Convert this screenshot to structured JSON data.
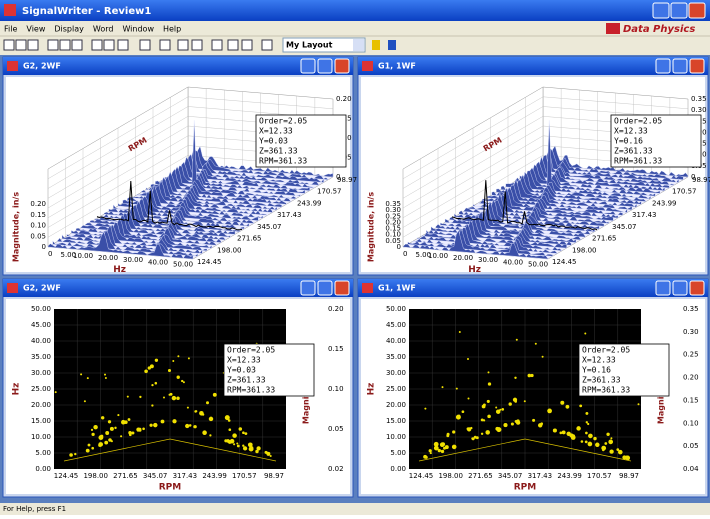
{
  "app": {
    "title": "SignalWriter - Review1",
    "menu": [
      "File",
      "View",
      "Display",
      "Word",
      "Window",
      "Help"
    ],
    "layout_select": "My Layout",
    "brand": "Data Physics",
    "status": "For Help, press F1"
  },
  "windows": [
    {
      "title": "G2, 2WF",
      "kind": "waterfall",
      "z_label": "Magnitude, in/s",
      "x_label": "Hz",
      "depth_label": "RPM",
      "z_ticks": [
        "0.20",
        "0.15",
        "0.10",
        "0.05",
        "0"
      ],
      "left_ticks": [
        "0.20",
        "0.15",
        "0.10",
        "0.05",
        "0"
      ],
      "x_ticks": [
        "0",
        "5.00",
        "10.00",
        "20.00",
        "30.00",
        "40.00",
        "50.00"
      ],
      "depth_ticks": [
        "98.97",
        "170.57",
        "243.99",
        "317.43",
        "345.07",
        "271.65",
        "198.00",
        "124.45"
      ],
      "cursor": [
        "Order=2.05",
        "X=12.33",
        "Y=0.03",
        "Z=361.33",
        "RPM=361.33"
      ]
    },
    {
      "title": "G1, 1WF",
      "kind": "waterfall",
      "z_label": "Magnitude, in/s",
      "x_label": "Hz",
      "depth_label": "RPM",
      "z_ticks": [
        "0.35",
        "0.30",
        "0.25",
        "0.20",
        "0.15",
        "0.10",
        "0.05",
        "0"
      ],
      "left_ticks": [
        "0.35",
        "0.30",
        "0.25",
        "0.20",
        "0.15",
        "0.10",
        "0.05",
        "0"
      ],
      "x_ticks": [
        "0",
        "5.00",
        "10.00",
        "20.00",
        "30.00",
        "40.00",
        "50.00"
      ],
      "depth_ticks": [
        "98.97",
        "170.57",
        "243.99",
        "317.43",
        "345.07",
        "271.65",
        "198.00",
        "124.45"
      ],
      "cursor": [
        "Order=2.05",
        "X=12.33",
        "Y=0.16",
        "Z=361.33",
        "RPM=361.33"
      ]
    },
    {
      "title": "G2, 2WF",
      "kind": "map",
      "y_label": "Hz",
      "x_label": "RPM",
      "right_label": "Magnitude, in/s",
      "y_ticks": [
        "50.00",
        "45.00",
        "40.00",
        "35.00",
        "30.00",
        "25.00",
        "20.00",
        "15.00",
        "10.00",
        "5.00",
        "0.00"
      ],
      "right_ticks": [
        "0.20",
        "0.15",
        "0.10",
        "0.05",
        "0.02"
      ],
      "x_ticks": [
        "124.45",
        "198.00",
        "271.65",
        "345.07",
        "317.43",
        "243.99",
        "170.57",
        "98.97"
      ],
      "cursor": [
        "Order=2.05",
        "X=12.33",
        "Y=0.03",
        "Z=361.33",
        "RPM=361.33"
      ]
    },
    {
      "title": "G1, 1WF",
      "kind": "map",
      "y_label": "Hz",
      "x_label": "RPM",
      "right_label": "Magnitude, in/s",
      "y_ticks": [
        "50.00",
        "45.00",
        "40.00",
        "35.00",
        "30.00",
        "25.00",
        "20.00",
        "15.00",
        "10.00",
        "5.00",
        "0.00"
      ],
      "right_ticks": [
        "0.35",
        "0.30",
        "0.25",
        "0.20",
        "0.15",
        "0.10",
        "0.05",
        "0.04"
      ],
      "x_ticks": [
        "124.45",
        "198.00",
        "271.65",
        "345.07",
        "317.43",
        "243.99",
        "170.57",
        "98.97"
      ],
      "cursor": [
        "Order=2.05",
        "X=12.33",
        "Y=0.16",
        "Z=361.33",
        "RPM=361.33"
      ]
    }
  ]
}
